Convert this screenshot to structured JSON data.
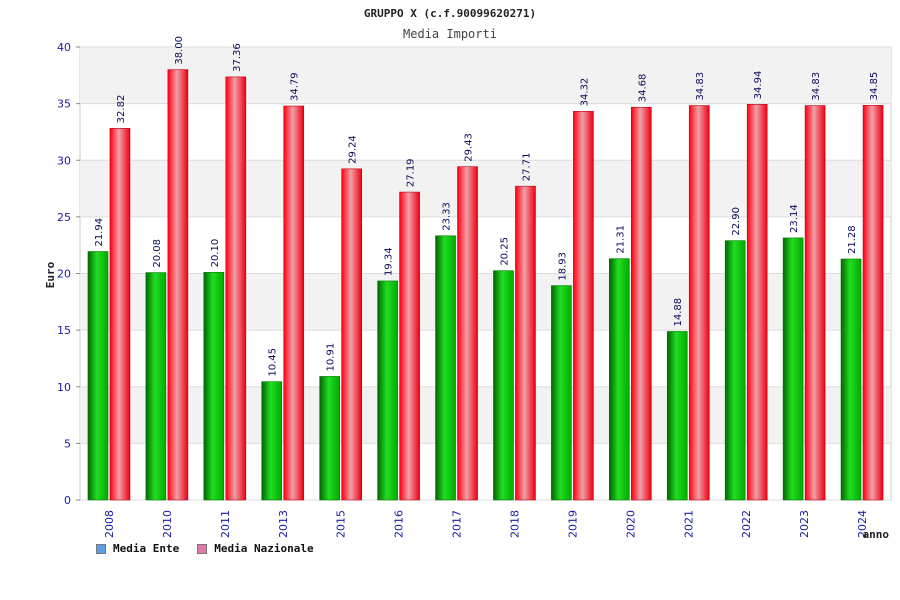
{
  "chart_data": {
    "type": "bar",
    "title": "GRUPPO X (c.f.90099620271)",
    "subtitle": "Media Importi",
    "ylabel": "Euro",
    "xlabel": "anno",
    "ylim": [
      0,
      40
    ],
    "yticks": [
      "0",
      "5",
      "10",
      "15",
      "20",
      "25",
      "30",
      "35",
      "40"
    ],
    "categories": [
      "2008",
      "2010",
      "2011",
      "2013",
      "2015",
      "2016",
      "2017",
      "2018",
      "2019",
      "2020",
      "2021",
      "2022",
      "2023",
      "2024"
    ],
    "series": [
      {
        "name": "Media Ente",
        "values": [
          21.94,
          20.08,
          20.1,
          10.45,
          10.91,
          19.34,
          23.33,
          20.25,
          18.93,
          21.31,
          14.88,
          22.9,
          23.14,
          21.28
        ],
        "labels": [
          "21.94",
          "20.08",
          "20.10",
          "10.45",
          "10.91",
          "19.34",
          "23.33",
          "20.25",
          "18.93",
          "21.31",
          "14.88",
          "22.90",
          "23.14",
          "21.28"
        ]
      },
      {
        "name": "Media Nazionale",
        "values": [
          32.82,
          38.0,
          37.36,
          34.79,
          29.24,
          27.19,
          29.43,
          27.71,
          34.32,
          34.68,
          34.83,
          34.94,
          34.83,
          34.85
        ],
        "labels": [
          "32.82",
          "38.00",
          "37.36",
          "34.79",
          "29.24",
          "27.19",
          "29.43",
          "27.71",
          "34.32",
          "34.68",
          "34.83",
          "34.94",
          "34.83",
          "34.85"
        ]
      }
    ],
    "grid": true,
    "legend": "bottom-left"
  },
  "colors": {
    "series_bar": [
      "#00bb00",
      "#ee1122"
    ],
    "legend_swatch": [
      "#5b9ee6",
      "#e07aa6"
    ],
    "band": "#f2f2f2",
    "grid": "#dddddd"
  }
}
